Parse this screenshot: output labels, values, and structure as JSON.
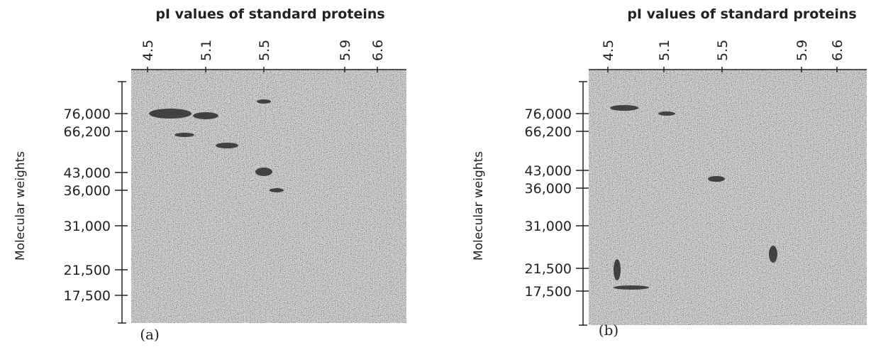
{
  "panels": [
    {
      "title": "pI values of standard proteins",
      "x_ticks": [
        "4.5",
        "5.1",
        "5.5",
        "5.9",
        "6.6"
      ],
      "y_label": "Molecular weights",
      "y_ticks": [
        "76,000",
        "66,200",
        "43,000",
        "36,000",
        "31,000",
        "21,500",
        "17,500"
      ],
      "label": "(a)"
    },
    {
      "title": "pI values of standard proteins",
      "x_ticks": [
        "4.5",
        "5.1",
        "5.5",
        "5.9",
        "6.6"
      ],
      "y_label": "Molecular weights",
      "y_ticks": [
        "76,000",
        "66,200",
        "43,000",
        "36,000",
        "31,000",
        "21,500",
        "17,500"
      ],
      "label": "(b)"
    }
  ]
}
